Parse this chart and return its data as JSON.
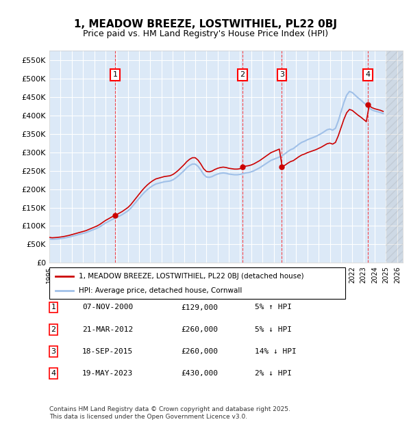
{
  "title": "1, MEADOW BREEZE, LOSTWITHIEL, PL22 0BJ",
  "subtitle": "Price paid vs. HM Land Registry's House Price Index (HPI)",
  "ylabel": "",
  "background_color": "#dce9f7",
  "plot_bg_color": "#dce9f7",
  "grid_color": "#ffffff",
  "hpi_line_color": "#a0c0e8",
  "price_line_color": "#cc0000",
  "sale_marker_color": "#cc0000",
  "ylim": [
    0,
    575000
  ],
  "yticks": [
    0,
    50000,
    100000,
    150000,
    200000,
    250000,
    300000,
    350000,
    400000,
    450000,
    500000,
    550000
  ],
  "ytick_labels": [
    "£0",
    "£50K",
    "£100K",
    "£150K",
    "£200K",
    "£250K",
    "£300K",
    "£350K",
    "£400K",
    "£450K",
    "£500K",
    "£550K"
  ],
  "xlim_start": 1995.0,
  "xlim_end": 2026.5,
  "xtick_years": [
    1995,
    1996,
    1997,
    1998,
    1999,
    2000,
    2001,
    2002,
    2003,
    2004,
    2005,
    2006,
    2007,
    2008,
    2009,
    2010,
    2011,
    2012,
    2013,
    2014,
    2015,
    2016,
    2017,
    2018,
    2019,
    2020,
    2021,
    2022,
    2023,
    2024,
    2025,
    2026
  ],
  "sales": [
    {
      "num": 1,
      "date": "07-NOV-2000",
      "year": 2000.85,
      "price": 129000,
      "pct": "5%",
      "dir": "↑"
    },
    {
      "num": 2,
      "date": "21-MAR-2012",
      "year": 2012.22,
      "price": 260000,
      "pct": "5%",
      "dir": "↓"
    },
    {
      "num": 3,
      "date": "18-SEP-2015",
      "year": 2015.72,
      "price": 260000,
      "pct": "14%",
      "dir": "↓"
    },
    {
      "num": 4,
      "date": "19-MAY-2023",
      "year": 2023.38,
      "price": 430000,
      "pct": "2%",
      "dir": "↓"
    }
  ],
  "legend_entries": [
    "1, MEADOW BREEZE, LOSTWITHIEL, PL22 0BJ (detached house)",
    "HPI: Average price, detached house, Cornwall"
  ],
  "table_rows": [
    {
      "num": 1,
      "date": "07-NOV-2000",
      "price": "£129,000",
      "rel": "5% ↑ HPI"
    },
    {
      "num": 2,
      "date": "21-MAR-2012",
      "price": "£260,000",
      "rel": "5% ↓ HPI"
    },
    {
      "num": 3,
      "date": "18-SEP-2015",
      "price": "£260,000",
      "rel": "14% ↓ HPI"
    },
    {
      "num": 4,
      "date": "19-MAY-2023",
      "price": "£430,000",
      "rel": "2% ↓ HPI"
    }
  ],
  "footer": "Contains HM Land Registry data © Crown copyright and database right 2025.\nThis data is licensed under the Open Government Licence v3.0.",
  "hpi_data_years": [
    1995.0,
    1995.25,
    1995.5,
    1995.75,
    1996.0,
    1996.25,
    1996.5,
    1996.75,
    1997.0,
    1997.25,
    1997.5,
    1997.75,
    1998.0,
    1998.25,
    1998.5,
    1998.75,
    1999.0,
    1999.25,
    1999.5,
    1999.75,
    2000.0,
    2000.25,
    2000.5,
    2000.75,
    2001.0,
    2001.25,
    2001.5,
    2001.75,
    2002.0,
    2002.25,
    2002.5,
    2002.75,
    2003.0,
    2003.25,
    2003.5,
    2003.75,
    2004.0,
    2004.25,
    2004.5,
    2004.75,
    2005.0,
    2005.25,
    2005.5,
    2005.75,
    2006.0,
    2006.25,
    2006.5,
    2006.75,
    2007.0,
    2007.25,
    2007.5,
    2007.75,
    2008.0,
    2008.25,
    2008.5,
    2008.75,
    2009.0,
    2009.25,
    2009.5,
    2009.75,
    2010.0,
    2010.25,
    2010.5,
    2010.75,
    2011.0,
    2011.25,
    2011.5,
    2011.75,
    2012.0,
    2012.25,
    2012.5,
    2012.75,
    2013.0,
    2013.25,
    2013.5,
    2013.75,
    2014.0,
    2014.25,
    2014.5,
    2014.75,
    2015.0,
    2015.25,
    2015.5,
    2015.75,
    2016.0,
    2016.25,
    2016.5,
    2016.75,
    2017.0,
    2017.25,
    2017.5,
    2017.75,
    2018.0,
    2018.25,
    2018.5,
    2018.75,
    2019.0,
    2019.25,
    2019.5,
    2019.75,
    2020.0,
    2020.25,
    2020.5,
    2020.75,
    2021.0,
    2021.25,
    2021.5,
    2021.75,
    2022.0,
    2022.25,
    2022.5,
    2022.75,
    2023.0,
    2023.25,
    2023.5,
    2023.75,
    2024.0,
    2024.25,
    2024.5,
    2024.75
  ],
  "hpi_data_values": [
    65000,
    64000,
    64500,
    65000,
    66000,
    67000,
    68500,
    70000,
    72000,
    74000,
    76000,
    78000,
    80000,
    82000,
    85000,
    88000,
    91000,
    94000,
    98000,
    103000,
    108000,
    112000,
    116000,
    120000,
    123000,
    127000,
    131000,
    136000,
    141000,
    148000,
    157000,
    166000,
    175000,
    184000,
    192000,
    199000,
    205000,
    210000,
    214000,
    216000,
    218000,
    220000,
    221000,
    222000,
    225000,
    230000,
    236000,
    243000,
    250000,
    258000,
    264000,
    268000,
    268000,
    262000,
    252000,
    240000,
    233000,
    232000,
    234000,
    238000,
    241000,
    243000,
    244000,
    243000,
    241000,
    240000,
    239000,
    239000,
    240000,
    242000,
    244000,
    245000,
    247000,
    250000,
    254000,
    258000,
    263000,
    268000,
    273000,
    278000,
    281000,
    284000,
    287000,
    291000,
    296000,
    302000,
    307000,
    310000,
    316000,
    322000,
    327000,
    330000,
    334000,
    337000,
    340000,
    343000,
    347000,
    351000,
    356000,
    361000,
    363000,
    360000,
    365000,
    385000,
    410000,
    435000,
    455000,
    465000,
    462000,
    455000,
    448000,
    442000,
    435000,
    428000,
    420000,
    415000,
    412000,
    410000,
    408000,
    405000
  ]
}
